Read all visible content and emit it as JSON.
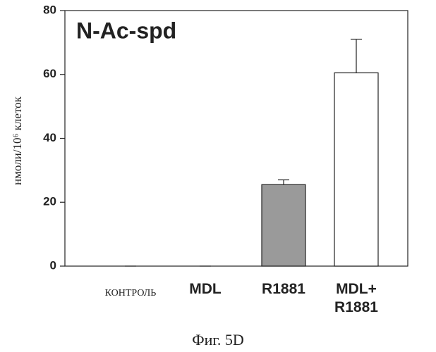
{
  "chart_data": {
    "type": "bar",
    "annotation": "N-Ac-spd",
    "ylabel": "нмоли/10⁶ клеток",
    "caption": "Фиг. 5D",
    "categories": [
      "КОНТРОЛЬ",
      "MDL",
      "R1881",
      "MDL+\nR1881"
    ],
    "values": [
      0,
      0,
      25.5,
      60.5
    ],
    "errors": [
      0,
      0,
      1.5,
      10.5
    ],
    "colors": [
      "#ffffff",
      "#ffffff",
      "#9a9a9a",
      "#ffffff"
    ],
    "ylim": [
      0,
      80
    ],
    "yticks": [
      0,
      20,
      40,
      60,
      80
    ]
  }
}
